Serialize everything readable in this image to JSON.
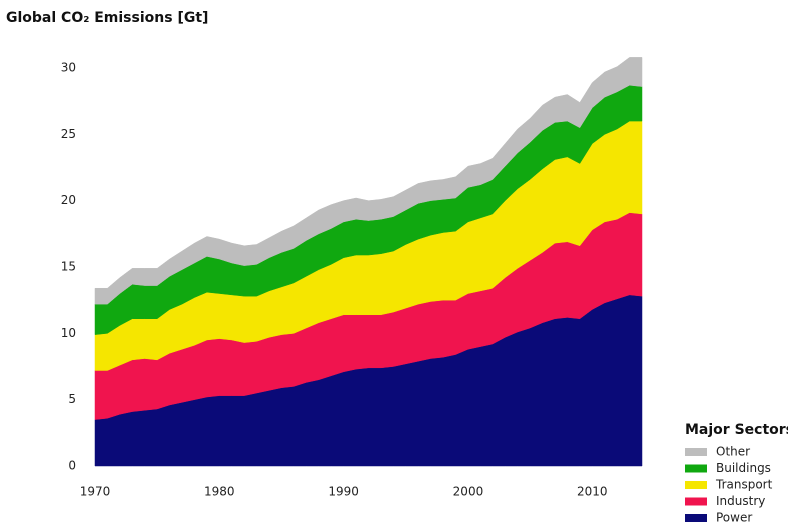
{
  "chart_data": {
    "type": "stacked_area",
    "title": "Global CO₂ Emissions [Gt]",
    "legend_title": "Major Sectors",
    "x": [
      1970,
      1971,
      1972,
      1973,
      1974,
      1975,
      1976,
      1977,
      1978,
      1979,
      1980,
      1981,
      1982,
      1983,
      1984,
      1985,
      1986,
      1987,
      1988,
      1989,
      1990,
      1991,
      1992,
      1993,
      1994,
      1995,
      1996,
      1997,
      1998,
      1999,
      2000,
      2001,
      2002,
      2003,
      2004,
      2005,
      2006,
      2007,
      2008,
      2009,
      2010,
      2011,
      2012,
      2013,
      2014
    ],
    "xlim": [
      1970,
      2014
    ],
    "xticks": [
      1970,
      1980,
      1990,
      2000,
      2010
    ],
    "ylim": [
      0,
      30
    ],
    "yticks": [
      0,
      5,
      10,
      15,
      20,
      25,
      30
    ],
    "grid": false,
    "legend": "lower right",
    "series": [
      {
        "name": "Power",
        "color": "#0a0a78",
        "values": [
          3.5,
          3.6,
          3.9,
          4.1,
          4.2,
          4.3,
          4.6,
          4.8,
          5.0,
          5.2,
          5.3,
          5.3,
          5.3,
          5.5,
          5.7,
          5.9,
          6.0,
          6.3,
          6.5,
          6.8,
          7.1,
          7.3,
          7.4,
          7.4,
          7.5,
          7.7,
          7.9,
          8.1,
          8.2,
          8.4,
          8.8,
          9.0,
          9.2,
          9.7,
          10.1,
          10.4,
          10.8,
          11.1,
          11.2,
          11.1,
          11.8,
          12.3,
          12.6,
          12.9,
          12.8
        ]
      },
      {
        "name": "Industry",
        "color": "#f0144e",
        "values": [
          3.7,
          3.6,
          3.7,
          3.9,
          3.9,
          3.7,
          3.9,
          4.0,
          4.1,
          4.3,
          4.3,
          4.2,
          4.0,
          3.9,
          4.0,
          4.0,
          4.0,
          4.1,
          4.3,
          4.3,
          4.3,
          4.1,
          4.0,
          4.0,
          4.1,
          4.2,
          4.3,
          4.3,
          4.3,
          4.1,
          4.2,
          4.2,
          4.2,
          4.5,
          4.8,
          5.1,
          5.3,
          5.7,
          5.7,
          5.5,
          6.0,
          6.1,
          6.0,
          6.2,
          6.2
        ]
      },
      {
        "name": "Transport",
        "color": "#f5e600",
        "values": [
          2.7,
          2.8,
          3.0,
          3.1,
          3.0,
          3.1,
          3.3,
          3.4,
          3.6,
          3.6,
          3.4,
          3.4,
          3.5,
          3.4,
          3.5,
          3.6,
          3.8,
          3.9,
          4.0,
          4.1,
          4.3,
          4.5,
          4.5,
          4.6,
          4.6,
          4.8,
          4.9,
          5.0,
          5.1,
          5.2,
          5.4,
          5.5,
          5.6,
          5.8,
          6.0,
          6.1,
          6.3,
          6.3,
          6.4,
          6.2,
          6.5,
          6.6,
          6.8,
          6.9,
          7.0
        ]
      },
      {
        "name": "Buildings",
        "color": "#10a810",
        "values": [
          2.3,
          2.2,
          2.4,
          2.6,
          2.5,
          2.5,
          2.5,
          2.6,
          2.6,
          2.7,
          2.6,
          2.4,
          2.3,
          2.4,
          2.5,
          2.6,
          2.6,
          2.7,
          2.7,
          2.7,
          2.7,
          2.7,
          2.6,
          2.6,
          2.6,
          2.6,
          2.7,
          2.6,
          2.5,
          2.5,
          2.6,
          2.5,
          2.6,
          2.6,
          2.7,
          2.8,
          2.9,
          2.8,
          2.7,
          2.7,
          2.7,
          2.8,
          2.8,
          2.7,
          2.6
        ]
      },
      {
        "name": "Other",
        "color": "#bdbdbd",
        "values": [
          1.2,
          1.2,
          1.2,
          1.2,
          1.3,
          1.3,
          1.3,
          1.4,
          1.5,
          1.5,
          1.5,
          1.5,
          1.5,
          1.5,
          1.5,
          1.6,
          1.7,
          1.7,
          1.8,
          1.8,
          1.6,
          1.6,
          1.5,
          1.5,
          1.5,
          1.5,
          1.5,
          1.5,
          1.5,
          1.6,
          1.6,
          1.6,
          1.6,
          1.7,
          1.8,
          1.8,
          1.9,
          1.9,
          2.0,
          1.9,
          1.9,
          1.9,
          1.9,
          2.1,
          2.2
        ]
      }
    ]
  }
}
